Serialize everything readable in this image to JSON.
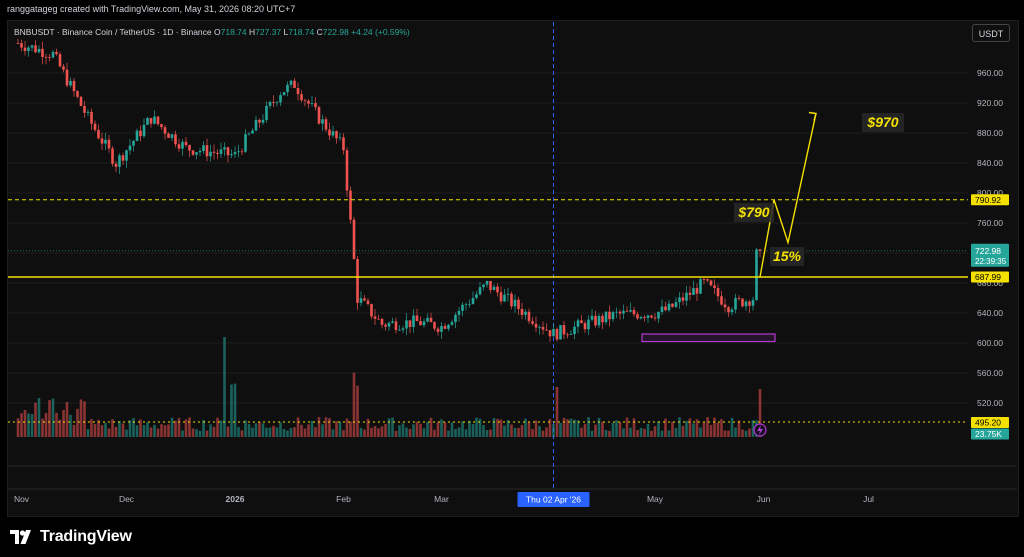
{
  "header": {
    "attribution": "ranggatageg created with TradingView.com, May 31, 2026 08:20 UTC+7"
  },
  "symbol": {
    "name": "BNBUSDT · Binance Coin / TetherUS · 1D · Binance",
    "o_label": "O",
    "o": "718.74",
    "h_label": "H",
    "h": "727.37",
    "l_label": "L",
    "l": "718.74",
    "c_label": "C",
    "c": "722.98",
    "change": "+4.24 (+0.59%)"
  },
  "currency_button": "USDT",
  "logo": {
    "text": "TradingView",
    "icon": "tradingview-logo-icon"
  },
  "colors": {
    "up": "#26a69a",
    "down": "#ef5350",
    "yellow": "#f5e100",
    "purple": "#b43ad6",
    "grid": "#1c1c1c",
    "axis_text": "#b2b5be",
    "crosshair": "#2962ff"
  },
  "chart_data": {
    "type": "candlestick",
    "y_ticks": [
      960,
      920,
      880,
      840,
      800,
      760,
      720,
      680,
      640,
      600,
      560,
      520
    ],
    "y_tick_labels": [
      "960.00",
      "920.00",
      "880.00",
      "840.00",
      "800.00",
      "760.00",
      "720.00",
      "680.00",
      "640.00",
      "600.00",
      "560.00",
      "520.00"
    ],
    "x_labels": [
      "Nov",
      "Dec",
      "2026",
      "Feb",
      "Mar",
      "Apr",
      "May",
      "Jun",
      "Jul"
    ],
    "crosshair_date_label": "Thu 02 Apr '26",
    "price_labels": [
      {
        "value": 790.92,
        "label": "790.92",
        "style": "dashed-yellow"
      },
      {
        "value": 722.98,
        "label": "722.98",
        "sub": "22:39:35",
        "style": "green"
      },
      {
        "value": 687.99,
        "label": "687.99",
        "style": "solid-yellow"
      },
      {
        "value": 495.2,
        "label": "495.20",
        "style": "dotted-yellow"
      }
    ],
    "volume_label": "23.75K",
    "annotations": [
      {
        "text": "$790",
        "type": "target"
      },
      {
        "text": "$970",
        "type": "target"
      },
      {
        "text": "15%",
        "type": "move"
      }
    ],
    "demand_zone": {
      "low": 602,
      "high": 612
    },
    "projection_path": [
      {
        "date": "2026-05-31",
        "price": 688
      },
      {
        "date": "2026-06-04",
        "price": 791
      },
      {
        "date": "2026-06-08",
        "price": 734
      },
      {
        "date": "2026-06-16",
        "price": 906
      }
    ],
    "key_points": [
      {
        "date": "2025-10-31",
        "price": 1000
      },
      {
        "date": "2025-11-10",
        "price": 985
      },
      {
        "date": "2025-11-20",
        "price": 900
      },
      {
        "date": "2025-11-28",
        "price": 840
      },
      {
        "date": "2025-12-08",
        "price": 900
      },
      {
        "date": "2025-12-18",
        "price": 860
      },
      {
        "date": "2026-01-01",
        "price": 850
      },
      {
        "date": "2026-01-14",
        "price": 935
      },
      {
        "date": "2026-01-18",
        "price": 945
      },
      {
        "date": "2026-01-25",
        "price": 900
      },
      {
        "date": "2026-02-01",
        "price": 860
      },
      {
        "date": "2026-02-05",
        "price": 660
      },
      {
        "date": "2026-02-12",
        "price": 625
      },
      {
        "date": "2026-02-22",
        "price": 628
      },
      {
        "date": "2026-03-01",
        "price": 622
      },
      {
        "date": "2026-03-14",
        "price": 678
      },
      {
        "date": "2026-03-25",
        "price": 640
      },
      {
        "date": "2026-04-02",
        "price": 612
      },
      {
        "date": "2026-04-20",
        "price": 638
      },
      {
        "date": "2026-05-01",
        "price": 640
      },
      {
        "date": "2026-05-05",
        "price": 645
      },
      {
        "date": "2026-05-15",
        "price": 680
      },
      {
        "date": "2026-05-22",
        "price": 650
      },
      {
        "date": "2026-05-29",
        "price": 660
      },
      {
        "date": "2026-05-30",
        "price": 718
      },
      {
        "date": "2026-05-31",
        "price": 723
      }
    ]
  }
}
